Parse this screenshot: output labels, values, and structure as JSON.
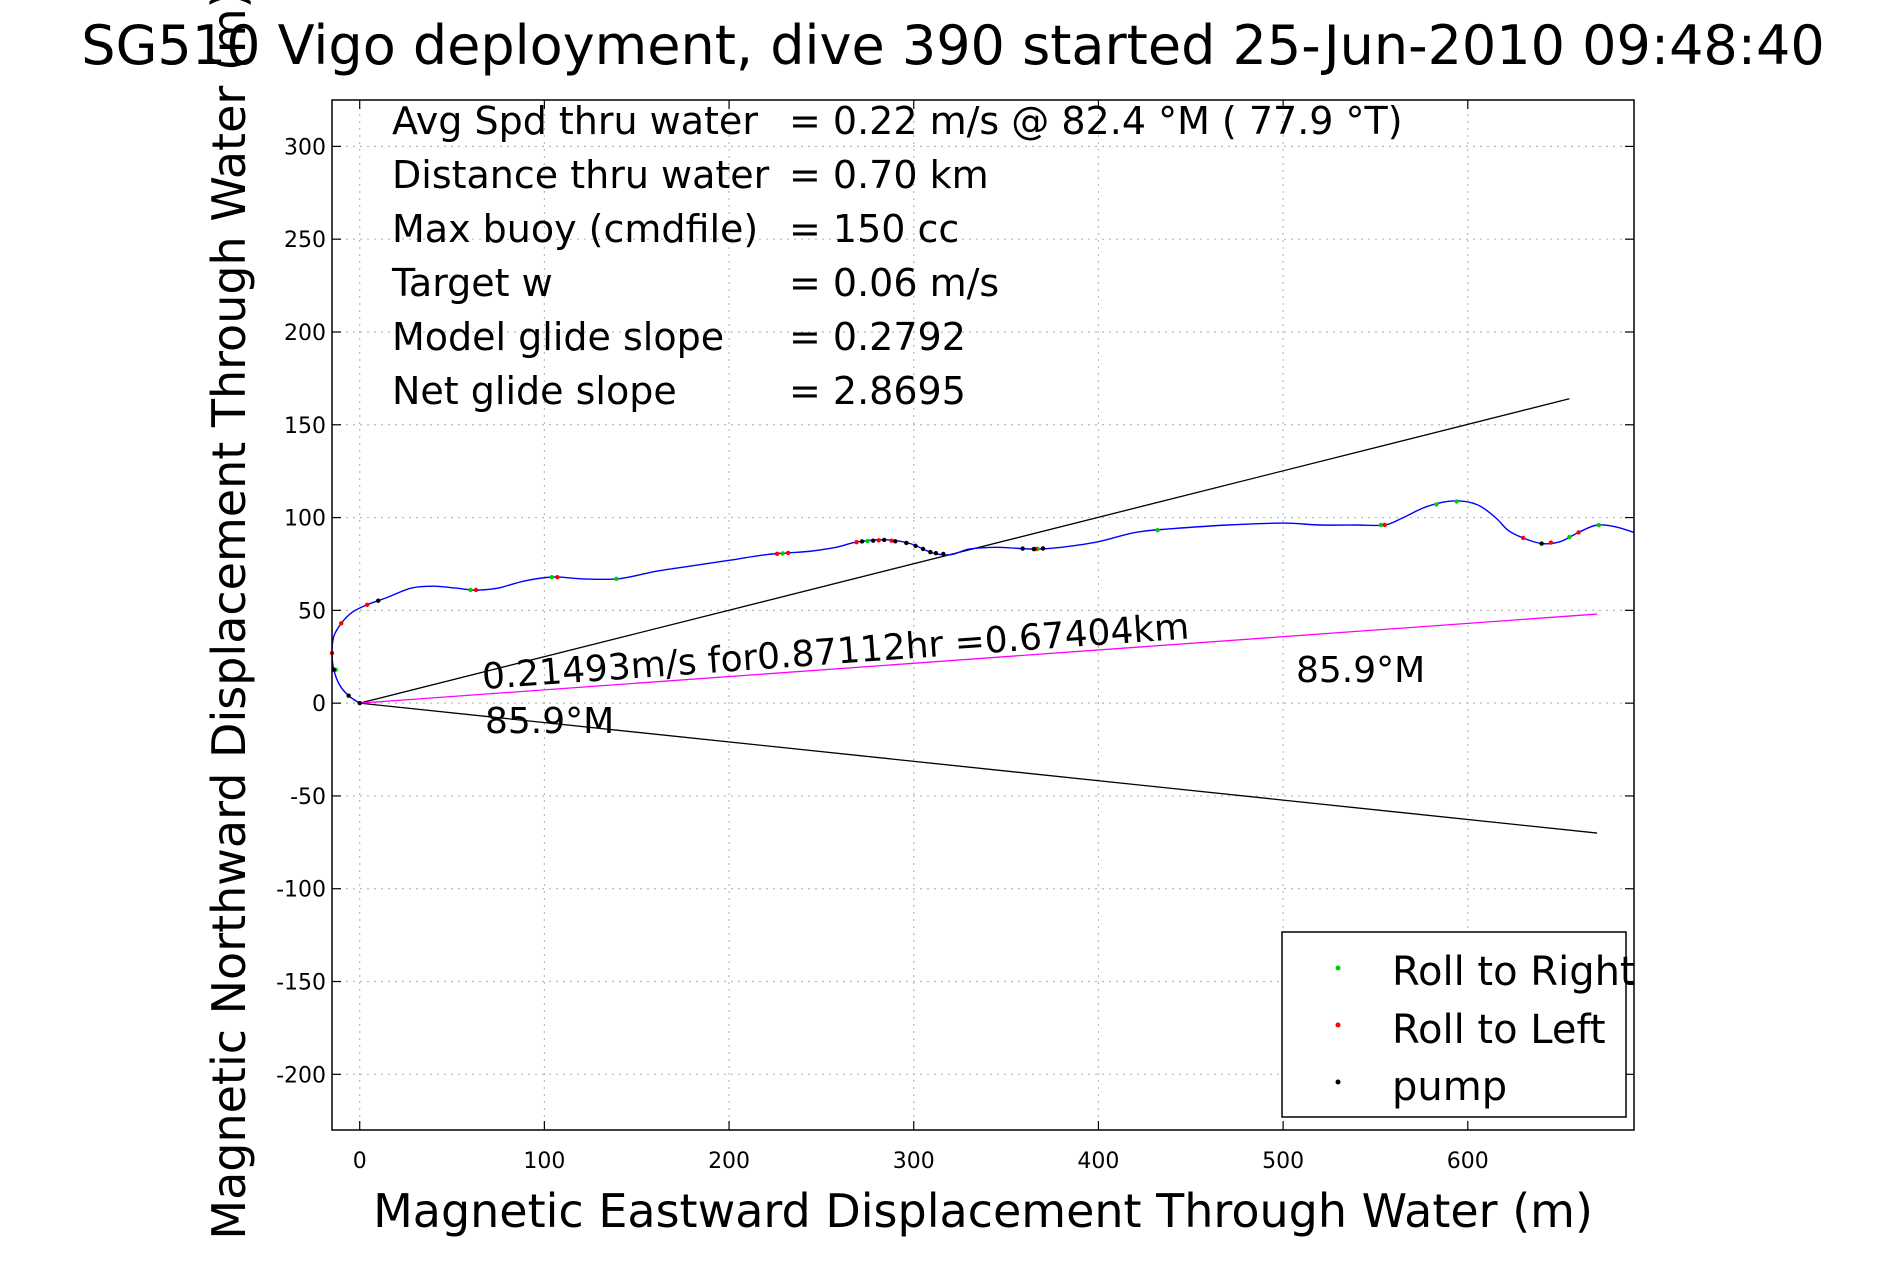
{
  "chart_data": {
    "type": "line",
    "title": "SG510 Vigo deployment, dive 390 started 25-Jun-2010 09:48:40",
    "xlabel": "Magnetic Eastward Displacement Through Water (m)",
    "ylabel": "Magnetic Northward Displacement Through Water (m)",
    "xlim": [
      -15,
      690
    ],
    "ylim": [
      -230,
      325
    ],
    "xticks": [
      0,
      100,
      200,
      300,
      400,
      500,
      600
    ],
    "yticks": [
      -200,
      -150,
      -100,
      -50,
      0,
      50,
      100,
      150,
      200,
      250,
      300
    ],
    "grid": true,
    "info_rows": [
      {
        "label": "Avg Spd thru water",
        "value": "=  0.22 m/s @  82.4 °M ( 77.9 °T)"
      },
      {
        "label": "Distance thru water",
        "value": "=  0.70 km"
      },
      {
        "label": "Max buoy (cmdfile)",
        "value": "= 150 cc"
      },
      {
        "label": "Target w",
        "value": "= 0.06 m/s"
      },
      {
        "label": "Model glide slope",
        "value": "= 0.2792"
      },
      {
        "label": "Net glide slope",
        "value": "= 2.8695"
      }
    ],
    "annotations": {
      "speed": "0.21493m/s for0.87112hr =0.67404km",
      "heading_near": "85.9°M",
      "heading_far": "85.9°M"
    },
    "reference_lines": [
      {
        "name": "upper",
        "color": "#000000",
        "x": [
          0,
          655
        ],
        "y": [
          0,
          164
        ]
      },
      {
        "name": "lower",
        "color": "#000000",
        "x": [
          0,
          670
        ],
        "y": [
          0,
          -70
        ]
      },
      {
        "name": "heading",
        "color": "#ff00ff",
        "x": [
          0,
          670
        ],
        "y": [
          0,
          48
        ]
      }
    ],
    "track": {
      "color": "#0000ff",
      "x": [
        0,
        -6,
        -11,
        -14,
        -15,
        -14,
        -10,
        -4,
        4,
        15,
        28,
        40,
        52,
        60,
        66,
        75,
        90,
        105,
        120,
        140,
        160,
        180,
        200,
        220,
        233,
        245,
        258,
        270,
        285,
        298,
        310,
        320,
        330,
        345,
        365,
        380,
        400,
        420,
        440,
        470,
        500,
        520,
        540,
        555,
        565,
        578,
        592,
        605,
        615,
        622,
        630,
        640,
        650,
        660,
        670,
        680,
        690
      ],
      "y": [
        0,
        4,
        10,
        18,
        27,
        36,
        43,
        49,
        53,
        57,
        62,
        63,
        62,
        61,
        61,
        62,
        66,
        68,
        67,
        67,
        71,
        74,
        77,
        80,
        81,
        82,
        84,
        87,
        88,
        86,
        81,
        80,
        83,
        84,
        83,
        84,
        87,
        92,
        94,
        96,
        97,
        96,
        96,
        96,
        100,
        106,
        109,
        107,
        100,
        93,
        89,
        86,
        87,
        92,
        96,
        95,
        92
      ]
    },
    "legend": {
      "position": "bottom-right",
      "items": [
        {
          "label": "Roll to Right",
          "color": "#00cc00"
        },
        {
          "label": "Roll to Left",
          "color": "#ff0000"
        },
        {
          "label": "pump",
          "color": "#000000"
        }
      ]
    },
    "markers": {
      "roll_right_x": [
        -13,
        60,
        104,
        139,
        229,
        275,
        367,
        432,
        553,
        583,
        594,
        655,
        671
      ],
      "roll_left_x": [
        -15,
        -10,
        4,
        63,
        107,
        226,
        232,
        269,
        281,
        288,
        366,
        370,
        555,
        630,
        645,
        660
      ],
      "pump_x": [
        -14,
        -6,
        0,
        10,
        272,
        278,
        284,
        290,
        296,
        301,
        305,
        309,
        312,
        316,
        359,
        365,
        370,
        640
      ]
    }
  }
}
